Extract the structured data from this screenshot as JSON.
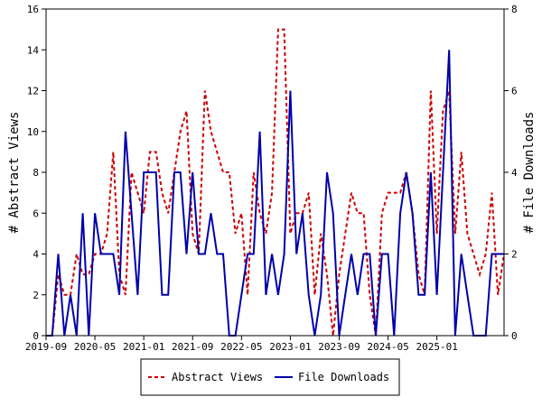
{
  "chart_data": {
    "type": "line",
    "x_tick_labels": [
      "2019-09",
      "2020-05",
      "2021-01",
      "2021-09",
      "2022-05",
      "2023-01",
      "2023-09",
      "2024-05",
      "2025-01"
    ],
    "ylabel_left": "# Abstract Views",
    "ylabel_right": "# File Downloads",
    "ylim_left": [
      0,
      16
    ],
    "ylim_right": [
      0,
      8
    ],
    "yticks_left": [
      "0",
      "2",
      "4",
      "6",
      "8",
      "10",
      "12",
      "14",
      "16"
    ],
    "yticks_right": [
      "0",
      "2",
      "4",
      "6",
      "8"
    ],
    "grid": false,
    "legend_placement": "bottom",
    "x_start": "2019-09",
    "series": [
      {
        "name": "Abstract Views",
        "axis": "left",
        "color": "#cc0000",
        "style": "dashed",
        "values": [
          0,
          0,
          3,
          2,
          2,
          4,
          3,
          3,
          4,
          4,
          5,
          9,
          3,
          2,
          8,
          7,
          6,
          9,
          9,
          7,
          6,
          8,
          10,
          11,
          5,
          4,
          12,
          10,
          9,
          8,
          8,
          5,
          6,
          2,
          8,
          6,
          5,
          7,
          15,
          15,
          5,
          6,
          6,
          7,
          2,
          5,
          3,
          0,
          3,
          5,
          7,
          6,
          6,
          2,
          0,
          6,
          7,
          7,
          7,
          8,
          6,
          3,
          2,
          12,
          5,
          11,
          12,
          5,
          9,
          5,
          4,
          3,
          4,
          7,
          2,
          4
        ]
      },
      {
        "name": "File Downloads",
        "axis": "right",
        "color": "#0000aa",
        "style": "solid",
        "values": [
          0,
          0,
          2,
          0,
          1,
          0,
          3,
          0,
          3,
          2,
          2,
          2,
          1,
          5,
          3,
          1,
          4,
          4,
          4,
          1,
          1,
          4,
          4,
          2,
          4,
          2,
          2,
          3,
          2,
          2,
          0,
          0,
          1,
          2,
          2,
          5,
          1,
          2,
          1,
          2,
          6,
          2,
          3,
          1,
          0,
          1,
          4,
          3,
          0,
          1,
          2,
          1,
          2,
          2,
          0,
          2,
          2,
          0,
          3,
          4,
          3,
          1,
          1,
          4,
          1,
          4,
          7,
          0,
          2,
          1,
          0,
          0,
          0,
          2,
          2,
          2
        ]
      }
    ]
  }
}
